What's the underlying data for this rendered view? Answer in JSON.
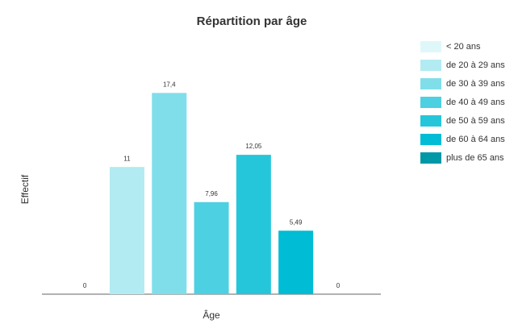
{
  "chart_data": {
    "type": "bar",
    "title": "Répartition par âge",
    "x_label": "Âge",
    "y_label": "Effectif",
    "categories": [
      "< 20 ans",
      "de 20 à 29 ans",
      "de 30 à 39 ans",
      "de 40 à 49 ans",
      "de 50 à 59 ans",
      "de 60 à 64 ans",
      "plus de 65 ans"
    ],
    "values": [
      0,
      11,
      17.4,
      7.96,
      12.05,
      5.49,
      0
    ],
    "value_labels": [
      "0",
      "11",
      "17,4",
      "7,96",
      "12,05",
      "5,49",
      "0"
    ],
    "colors": [
      "#e0f7fa",
      "#b2ebf2",
      "#80deea",
      "#4dd0e1",
      "#26c6da",
      "#00bcd4",
      "#0097a7"
    ],
    "ylim": [
      0,
      20
    ],
    "legend": "right"
  }
}
